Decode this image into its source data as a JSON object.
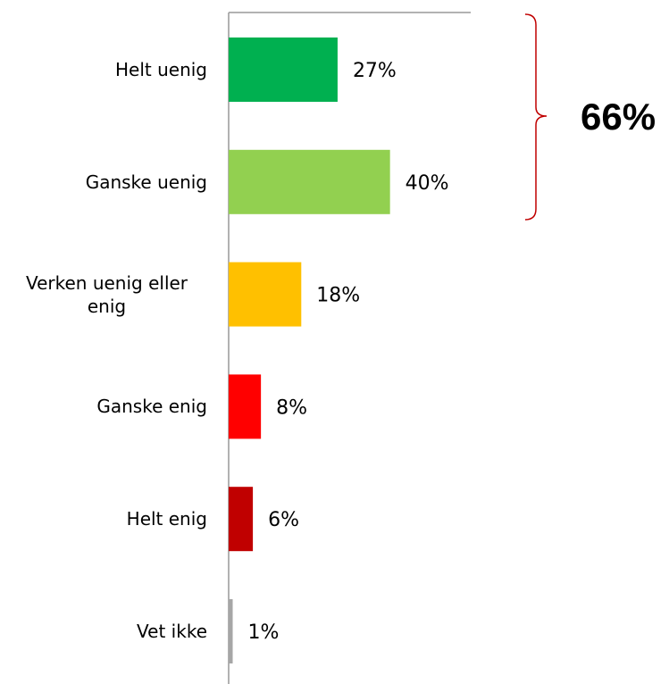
{
  "chart_data": {
    "type": "bar",
    "orientation": "horizontal",
    "categories": [
      "Helt uenig",
      "Ganske uenig",
      "Verken uenig eller enig",
      "Ganske enig",
      "Helt enig",
      "Vet ikke"
    ],
    "values": [
      27,
      40,
      18,
      8,
      6,
      1
    ],
    "value_labels": [
      "27%",
      "40%",
      "18%",
      "8%",
      "6%",
      "1%"
    ],
    "colors": [
      "#00b050",
      "#92d050",
      "#ffc000",
      "#ff0000",
      "#c00000",
      "#a6a6a6"
    ],
    "xlim": [
      0,
      60
    ],
    "annotation": "66%",
    "annotation_color": "#c00000"
  }
}
